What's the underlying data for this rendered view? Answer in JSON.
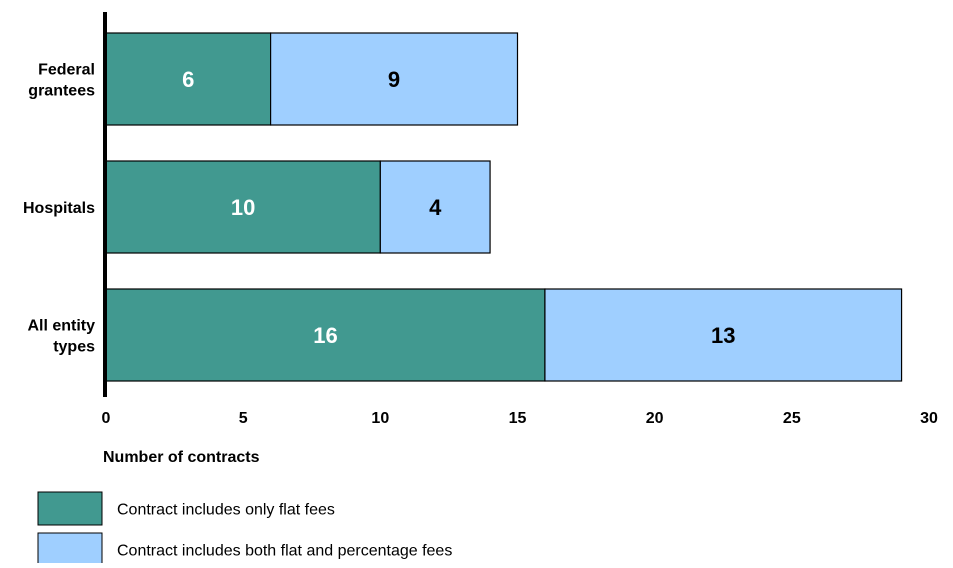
{
  "chart_data": {
    "type": "bar",
    "orientation": "horizontal",
    "stacked": true,
    "title": "",
    "xlabel": "Number of contracts",
    "ylabel": "",
    "xlim": [
      0,
      30
    ],
    "x_ticks": [
      0,
      5,
      10,
      15,
      20,
      25,
      30
    ],
    "grid": false,
    "legend_position": "bottom-left",
    "categories": [
      [
        "Federal",
        "grantees"
      ],
      [
        "Hospitals"
      ],
      [
        "All entity",
        "types"
      ]
    ],
    "series": [
      {
        "name": "Contract includes only flat fees",
        "color": "#419990",
        "label_color": "#ffffff",
        "values": [
          6,
          10,
          16
        ]
      },
      {
        "name": "Contract includes both flat and percentage fees",
        "color": "#9fcfff",
        "label_color": "#000000",
        "values": [
          9,
          4,
          13
        ]
      }
    ]
  }
}
